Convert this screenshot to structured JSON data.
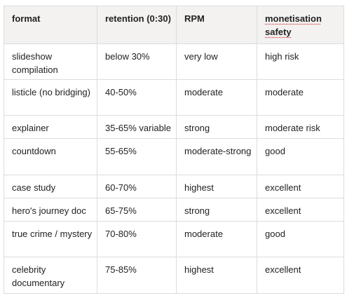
{
  "table": {
    "header": [
      "format",
      "retention (0:30)",
      "RPM",
      "monetisation safety"
    ],
    "rows": [
      [
        "slideshow compilation",
        "below 30%",
        "very low",
        "high risk"
      ],
      [
        "listicle (no bridging)",
        "40-50%",
        "moderate",
        "moderate"
      ],
      [
        "explainer",
        "35-65% variable",
        "strong",
        "moderate risk"
      ],
      [
        "countdown",
        "55-65%",
        "moderate-strong",
        "good"
      ],
      [
        "case study",
        "60-70%",
        "highest",
        "excellent"
      ],
      [
        "hero's journey doc",
        "65-75%",
        "strong",
        "excellent"
      ],
      [
        "true crime / mystery",
        "70-80%",
        "moderate",
        "good"
      ],
      [
        "celebrity documentary",
        "75-85%",
        "highest",
        "excellent"
      ]
    ]
  }
}
